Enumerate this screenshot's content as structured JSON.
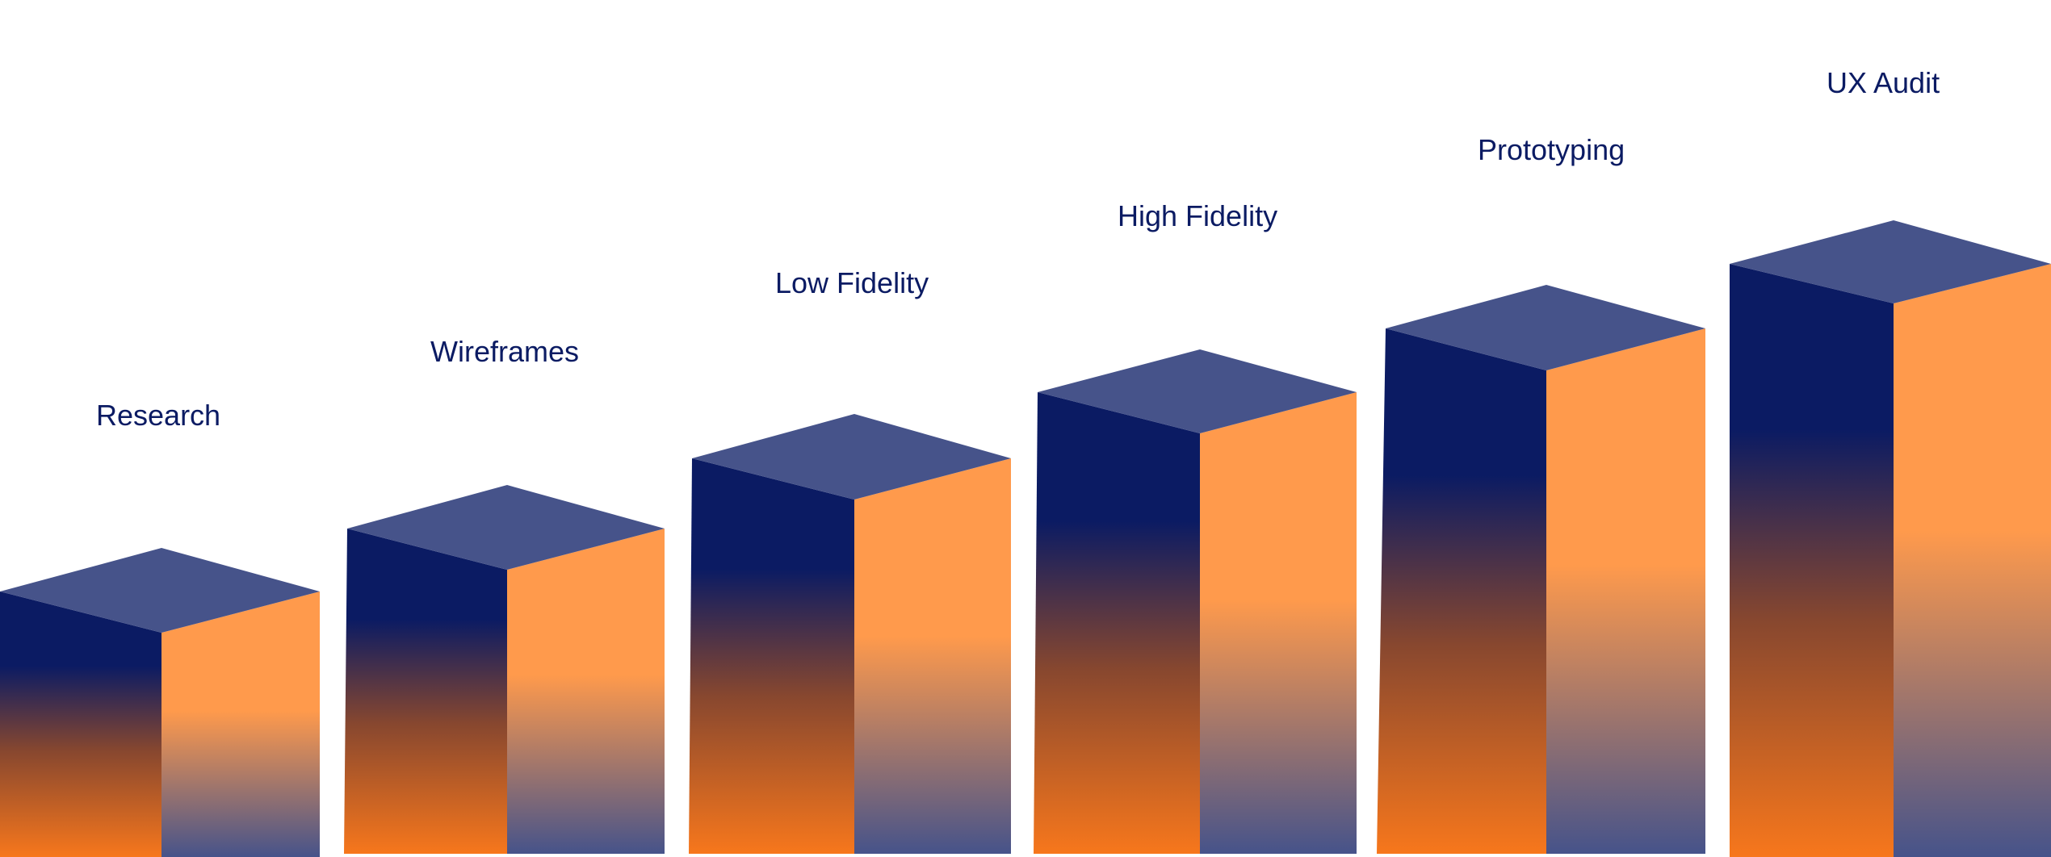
{
  "colors": {
    "navy": "#0b1b63",
    "top_face": "#46538a",
    "orange": "#ff9a4c",
    "deep_orange": "#f7771c",
    "slate": "#46538a",
    "label": "#0b1b63"
  },
  "steps": [
    {
      "label": "Research"
    },
    {
      "label": "Wireframes"
    },
    {
      "label": "Low Fidelity"
    },
    {
      "label": "High Fidelity"
    },
    {
      "label": "Prototyping"
    },
    {
      "label": "UX Audit"
    }
  ]
}
